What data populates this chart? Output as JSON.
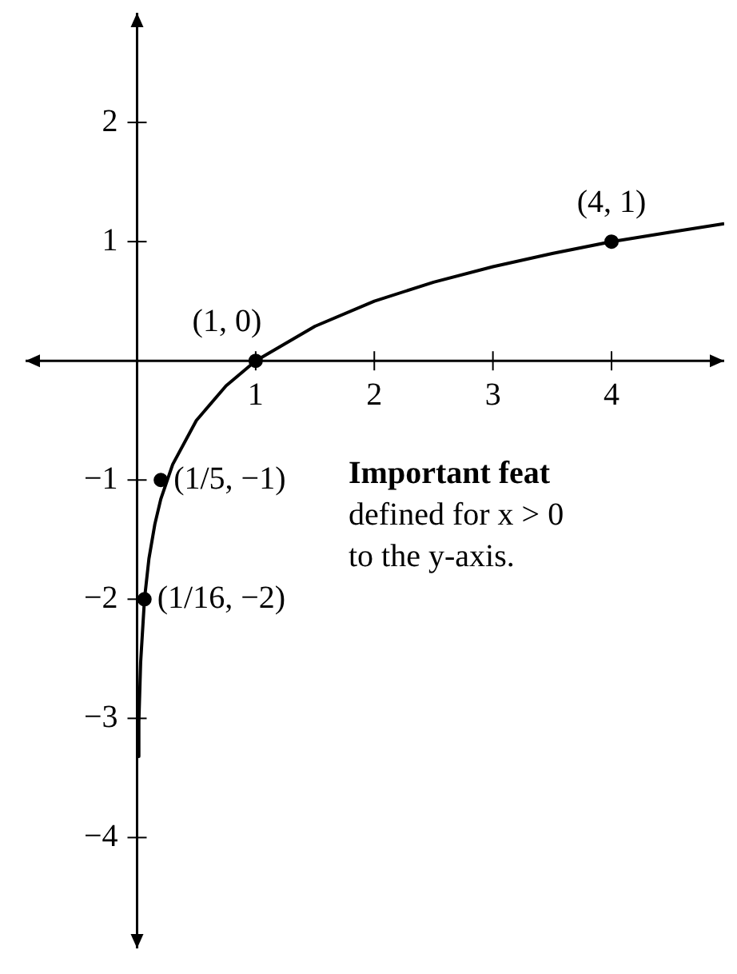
{
  "chart_data": {
    "type": "line",
    "xlim": [
      -0.94,
      4.95
    ],
    "ylim": [
      -4.93,
      2.92
    ],
    "xticks": [
      1,
      2,
      3,
      4
    ],
    "yticks": [
      {
        "value": -4,
        "label": "−4"
      },
      {
        "value": -3,
        "label": "−3"
      },
      {
        "value": -2,
        "label": "−2"
      },
      {
        "value": -1,
        "label": "−1"
      },
      1,
      2
    ],
    "grid": false,
    "legend": false,
    "series": [
      {
        "type": "line",
        "color": "#000000",
        "marker": "none",
        "x": [
          0.01,
          0.015,
          0.03,
          0.0625,
          0.1,
          0.15,
          0.2,
          0.3,
          0.5,
          0.75,
          1,
          1.5,
          2,
          2.5,
          3,
          3.5,
          4,
          4.5,
          4.95
        ],
        "values": [
          -3.32,
          -3.03,
          -2.53,
          -2,
          -1.66,
          -1.37,
          -1.16,
          -0.87,
          -0.5,
          -0.21,
          0,
          0.29,
          0.5,
          0.66,
          0.79,
          0.9,
          1,
          1.08,
          1.15
        ]
      },
      {
        "type": "scatter",
        "color": "#000000",
        "marker": "circle",
        "x": [
          0.0625,
          0.2,
          1,
          4
        ],
        "values": [
          -2,
          -1,
          0,
          1
        ]
      }
    ],
    "annotations": [
      {
        "text": "(1, 0)",
        "x": 1,
        "y": 0
      },
      {
        "text": "(4, 1)",
        "x": 4,
        "y": 1
      },
      {
        "text": "(1/5, −1)",
        "x": 0.2,
        "y": -1
      },
      {
        "text": "(1/16, −2)",
        "x": 0.0625,
        "y": -2
      },
      "Important feat",
      "defined for x > 0",
      "to the y-axis."
    ]
  }
}
